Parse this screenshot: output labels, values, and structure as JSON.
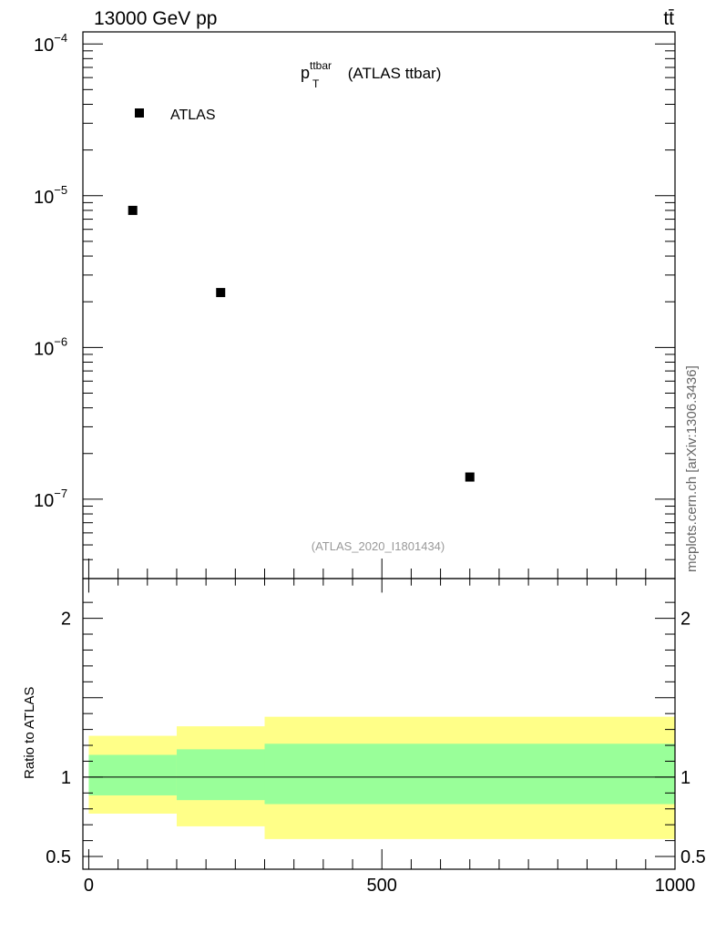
{
  "header": {
    "left": "13000 GeV pp",
    "right": "tt̄"
  },
  "side_label": "mcplots.cern.ch [arXiv:1306.3436]",
  "chart_data": [
    {
      "type": "scatter",
      "title_main": "p",
      "title_sup": "ttbar",
      "title_sub": "T",
      "title_rest": " (ATLAS ttbar)",
      "watermark": "(ATLAS_2020_I1801434)",
      "yscale": "log",
      "ylim": [
        3e-08,
        0.00012
      ],
      "xlim": [
        -10,
        1000
      ],
      "yticks": [
        {
          "v": 0.0001,
          "mant": "10",
          "exp": "−4"
        },
        {
          "v": 1e-05,
          "mant": "10",
          "exp": "−5"
        },
        {
          "v": 1e-06,
          "mant": "10",
          "exp": "−6"
        },
        {
          "v": 1e-07,
          "mant": "10",
          "exp": "−7"
        }
      ],
      "legend": {
        "position": "top-left",
        "entries": [
          "ATLAS"
        ]
      },
      "series": [
        {
          "name": "ATLAS",
          "x": [
            75,
            225,
            650
          ],
          "y": [
            8e-06,
            2.3e-06,
            1.4e-07
          ]
        }
      ]
    },
    {
      "type": "area",
      "ylabel": "Ratio to ATLAS",
      "ylim": [
        0.42,
        2.25
      ],
      "xlim": [
        -10,
        1000
      ],
      "yticks": [
        {
          "v": 0.5,
          "label": "0.5"
        },
        {
          "v": 1,
          "label": "1"
        },
        {
          "v": 2,
          "label": "2"
        }
      ],
      "xticks": [
        {
          "v": 0,
          "label": "0"
        },
        {
          "v": 500,
          "label": "500"
        },
        {
          "v": 1000,
          "label": "1000"
        }
      ],
      "reference_line": 1,
      "bins": [
        {
          "x0": 0,
          "x1": 150,
          "outer": [
            0.77,
            1.26
          ],
          "inner": [
            0.885,
            1.14
          ]
        },
        {
          "x0": 150,
          "x1": 300,
          "outer": [
            0.69,
            1.32
          ],
          "inner": [
            0.855,
            1.175
          ]
        },
        {
          "x0": 300,
          "x1": 1000,
          "outer": [
            0.61,
            1.38
          ],
          "inner": [
            0.83,
            1.21
          ]
        }
      ],
      "colors": {
        "outer": "#ffff88",
        "inner": "#99ff99",
        "marker": "#000000"
      }
    }
  ]
}
